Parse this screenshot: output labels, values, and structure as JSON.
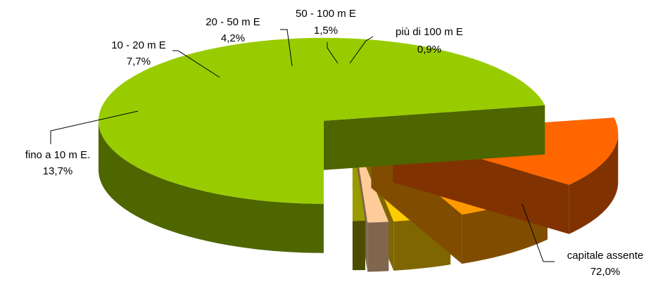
{
  "chart_data": {
    "type": "pie",
    "style": "3d-exploded",
    "title": "",
    "legend": "none",
    "slices": [
      {
        "label": "capitale assente",
        "value_text": "72,0%",
        "value": 72.0,
        "top_color": "#99CC00",
        "side_color": "#4D6600"
      },
      {
        "label": "fino a 10 m E.",
        "value_text": "13,7%",
        "value": 13.7,
        "top_color": "#FF6600",
        "side_color": "#803300"
      },
      {
        "label": "10 - 20 m E",
        "value_text": "7,7%",
        "value": 7.7,
        "top_color": "#FF9900",
        "side_color": "#804D00"
      },
      {
        "label": "20 - 50 m E",
        "value_text": "4,2%",
        "value": 4.2,
        "top_color": "#FFCC00",
        "side_color": "#806600"
      },
      {
        "label": "50 - 100 m E",
        "value_text": "1,5%",
        "value": 1.5,
        "top_color": "#FFCC99",
        "side_color": "#80664D"
      },
      {
        "label": "più di 100 m E",
        "value_text": "0,9%",
        "value": 0.9,
        "top_color": "#999900",
        "side_color": "#4D4D00"
      }
    ]
  }
}
